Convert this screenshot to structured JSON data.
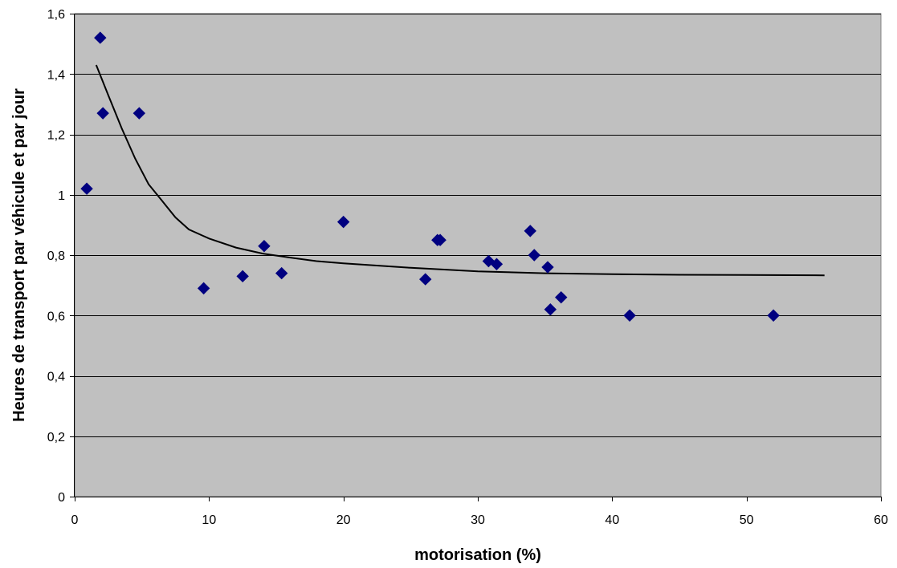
{
  "colors": {
    "plot_background": "#c0c0c0",
    "gridline": "#000000",
    "marker": "#000080",
    "trend_line": "#000000"
  },
  "chart_data": {
    "type": "scatter",
    "title": "",
    "xlabel": "motorisation (%)",
    "ylabel": "Heures de transport par véhicule et par jour",
    "xlim": [
      0,
      60
    ],
    "ylim": [
      0,
      1.6
    ],
    "x_ticks": [
      0,
      10,
      20,
      30,
      40,
      50,
      60
    ],
    "x_tick_labels": [
      "0",
      "10",
      "20",
      "30",
      "40",
      "50",
      "60"
    ],
    "y_ticks": [
      0,
      0.2,
      0.4,
      0.6,
      0.8,
      1.0,
      1.2,
      1.4,
      1.6
    ],
    "y_tick_labels": [
      "0",
      "0,2",
      "0,4",
      "0,6",
      "0,8",
      "1",
      "1,2",
      "1,4",
      "1,6"
    ],
    "grid": "horizontal",
    "legend": "none",
    "marker_shape": "diamond",
    "series": [
      {
        "type": "scatter",
        "points": [
          [
            0.9,
            1.02
          ],
          [
            1.9,
            1.52
          ],
          [
            2.1,
            1.27
          ],
          [
            4.8,
            1.27
          ],
          [
            9.6,
            0.69
          ],
          [
            12.5,
            0.73
          ],
          [
            14.1,
            0.83
          ],
          [
            15.4,
            0.74
          ],
          [
            20.0,
            0.91
          ],
          [
            26.1,
            0.72
          ],
          [
            27.0,
            0.85
          ],
          [
            27.2,
            0.85
          ],
          [
            30.8,
            0.78
          ],
          [
            31.4,
            0.77
          ],
          [
            33.9,
            0.88
          ],
          [
            34.2,
            0.8
          ],
          [
            35.2,
            0.76
          ],
          [
            35.4,
            0.62
          ],
          [
            36.2,
            0.66
          ],
          [
            41.3,
            0.6
          ],
          [
            52.0,
            0.6
          ]
        ]
      },
      {
        "type": "line",
        "points": [
          [
            1.6,
            1.43
          ],
          [
            2.5,
            1.33
          ],
          [
            3.5,
            1.22
          ],
          [
            4.5,
            1.12
          ],
          [
            5.5,
            1.035
          ],
          [
            6.5,
            0.98
          ],
          [
            7.5,
            0.925
          ],
          [
            8.5,
            0.885
          ],
          [
            10,
            0.855
          ],
          [
            12,
            0.825
          ],
          [
            14,
            0.805
          ],
          [
            16,
            0.792
          ],
          [
            18,
            0.78
          ],
          [
            20,
            0.773
          ],
          [
            25,
            0.758
          ],
          [
            30,
            0.746
          ],
          [
            35,
            0.74
          ],
          [
            40,
            0.737
          ],
          [
            45,
            0.735
          ],
          [
            50,
            0.734
          ],
          [
            55.8,
            0.733
          ]
        ]
      }
    ]
  }
}
